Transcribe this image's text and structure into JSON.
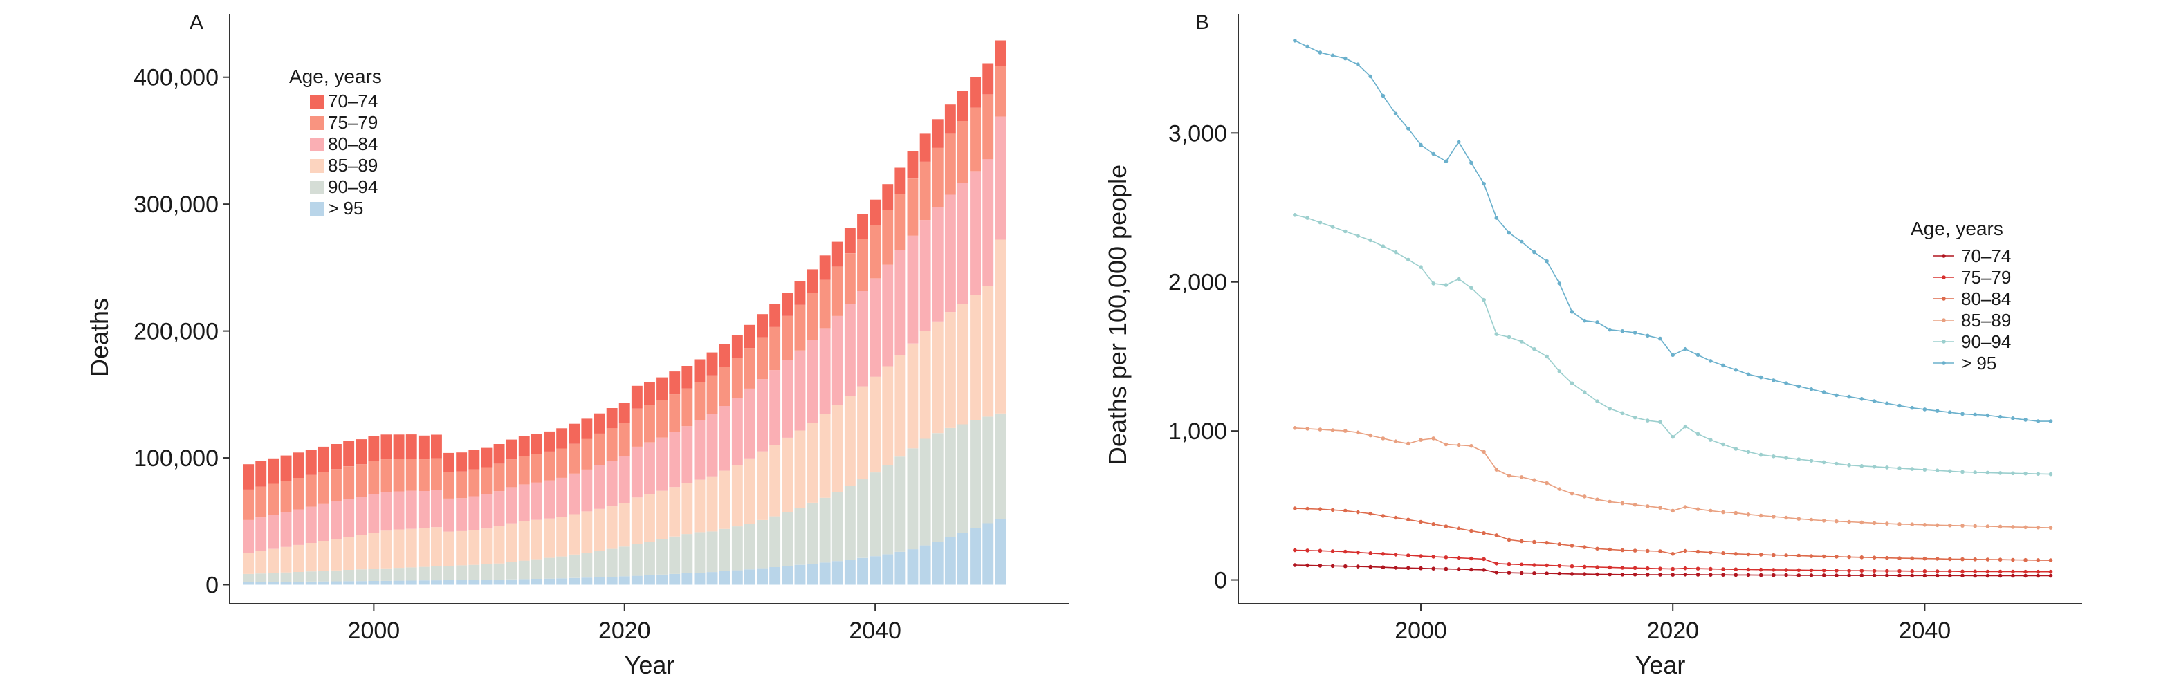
{
  "chart_data": [
    {
      "panel": "A",
      "type": "bar",
      "stacked": true,
      "xlabel": "Year",
      "ylabel": "Deaths",
      "x_ticks": [
        2000,
        2020,
        2040
      ],
      "y_ticks": [
        0,
        100000,
        200000,
        300000,
        400000
      ],
      "y_tick_labels": [
        "0",
        "100,000",
        "200,000",
        "300,000",
        "400,000"
      ],
      "xlim": [
        1988.5,
        2055.5
      ],
      "ylim": [
        -15000,
        450000
      ],
      "legend": {
        "title": "Age, years",
        "position": "top-left"
      },
      "categories": [
        1990,
        1991,
        1992,
        1993,
        1994,
        1995,
        1996,
        1997,
        1998,
        1999,
        2000,
        2001,
        2002,
        2003,
        2004,
        2005,
        2006,
        2007,
        2008,
        2009,
        2010,
        2011,
        2012,
        2013,
        2014,
        2015,
        2016,
        2017,
        2018,
        2019,
        2020,
        2021,
        2022,
        2023,
        2024,
        2025,
        2026,
        2027,
        2028,
        2029,
        2030,
        2031,
        2032,
        2033,
        2034,
        2035,
        2036,
        2037,
        2038,
        2039,
        2040,
        2041,
        2042,
        2043,
        2044,
        2045,
        2046,
        2047,
        2048,
        2049,
        2050
      ],
      "series": [
        {
          "name": "> 95",
          "color": "#b9d5e9",
          "values": [
            2000,
            2100,
            2200,
            2300,
            2400,
            2500,
            2600,
            2700,
            2800,
            2900,
            3000,
            3100,
            3200,
            3300,
            3400,
            3500,
            3600,
            3700,
            3800,
            3900,
            4000,
            4200,
            4400,
            4600,
            4800,
            5000,
            5300,
            5600,
            5900,
            6200,
            6600,
            7000,
            7500,
            8000,
            8500,
            9000,
            9500,
            10000,
            10700,
            11400,
            12100,
            13000,
            13900,
            14800,
            15700,
            16600,
            17500,
            18700,
            19900,
            21100,
            22500,
            24000,
            26000,
            28000,
            31000,
            34000,
            37500,
            41000,
            44500,
            48500,
            52000
          ]
        },
        {
          "name": "90–94",
          "color": "#d5ddd6",
          "values": [
            6500,
            6800,
            7100,
            7400,
            7700,
            8000,
            8300,
            8600,
            8900,
            9200,
            9500,
            9800,
            10100,
            10400,
            10700,
            11000,
            11300,
            11600,
            11900,
            12200,
            12800,
            13700,
            14600,
            15500,
            16400,
            17300,
            18500,
            19700,
            20900,
            22100,
            23500,
            25000,
            26500,
            28000,
            29500,
            31000,
            32000,
            32000,
            33300,
            34600,
            35900,
            38000,
            40000,
            42500,
            45000,
            48000,
            51000,
            54500,
            58000,
            62000,
            66000,
            70500,
            75000,
            79500,
            84000,
            85500,
            86000,
            85500,
            85000,
            84000,
            83000
          ]
        },
        {
          "name": "85–89",
          "color": "#fcd4bf",
          "values": [
            16500,
            17700,
            18900,
            20100,
            21300,
            22500,
            23700,
            24900,
            26100,
            27300,
            28500,
            29700,
            30300,
            30300,
            30300,
            30900,
            27000,
            27000,
            27600,
            28200,
            29500,
            30500,
            31000,
            31000,
            31000,
            31000,
            31800,
            32500,
            33000,
            33500,
            34000,
            36800,
            37200,
            38000,
            39000,
            40000,
            41300,
            43500,
            45900,
            48200,
            51600,
            54100,
            56300,
            58600,
            60900,
            63200,
            66300,
            68600,
            70900,
            73300,
            75500,
            77800,
            80200,
            82600,
            85000,
            88000,
            91500,
            95000,
            99000,
            103000,
            137000
          ]
        },
        {
          "name": "80–84",
          "color": "#faafb4",
          "values": [
            26000,
            26500,
            27000,
            27500,
            28000,
            28500,
            29000,
            29500,
            30000,
            30000,
            30500,
            30500,
            30000,
            30000,
            29500,
            29500,
            26000,
            26000,
            26500,
            27000,
            27500,
            28500,
            29000,
            29500,
            30000,
            31000,
            32000,
            33000,
            34500,
            36000,
            37000,
            40000,
            41000,
            42000,
            43500,
            45000,
            47000,
            49000,
            51000,
            53000,
            55000,
            57000,
            59000,
            61000,
            63000,
            65000,
            67500,
            70000,
            72500,
            75000,
            77500,
            80000,
            82500,
            85000,
            87500,
            90000,
            92500,
            95000,
            97500,
            100000,
            97000
          ]
        },
        {
          "name": "75–79",
          "color": "#f99480",
          "values": [
            24000,
            24200,
            24400,
            24600,
            24800,
            25000,
            25200,
            25400,
            25600,
            25600,
            25800,
            25800,
            25600,
            25400,
            25000,
            24800,
            21000,
            21000,
            21200,
            21400,
            21600,
            21900,
            22200,
            22500,
            22800,
            23100,
            23500,
            24200,
            24900,
            25600,
            26300,
            30000,
            29500,
            29500,
            29600,
            29700,
            30000,
            30500,
            31000,
            31500,
            32000,
            33000,
            34000,
            35000,
            36000,
            37000,
            38000,
            39000,
            40000,
            41000,
            42000,
            43000,
            44000,
            45000,
            46000,
            47000,
            48000,
            49000,
            50000,
            51000,
            40000
          ]
        },
        {
          "name": "70–74",
          "color": "#f3675a",
          "values": [
            20000,
            20000,
            20000,
            20000,
            20000,
            20000,
            20000,
            19800,
            19700,
            19700,
            19600,
            19500,
            19200,
            19100,
            18700,
            18600,
            15000,
            15000,
            15100,
            15200,
            15500,
            15600,
            15700,
            15800,
            15800,
            15900,
            15800,
            15900,
            15900,
            15900,
            15800,
            18000,
            18000,
            18000,
            18000,
            17800,
            17900,
            18100,
            18000,
            18000,
            18200,
            18200,
            18300,
            18400,
            18600,
            18800,
            19300,
            19500,
            19700,
            19900,
            20000,
            20500,
            21000,
            21500,
            22000,
            22500,
            23000,
            23500,
            24000,
            24500,
            20000
          ]
        }
      ]
    },
    {
      "panel": "B",
      "type": "line",
      "xlabel": "Year",
      "ylabel": "Deaths per 100,000 people",
      "x_ticks": [
        2000,
        2020,
        2040
      ],
      "y_ticks": [
        0,
        1000,
        2000,
        3000
      ],
      "y_tick_labels": [
        "0",
        "1,000",
        "2,000",
        "3,000"
      ],
      "xlim": [
        1985.5,
        2052.5
      ],
      "ylim": [
        -160,
        3800
      ],
      "legend": {
        "title": "Age, years",
        "position": "right"
      },
      "x": [
        1990,
        1991,
        1992,
        1993,
        1994,
        1995,
        1996,
        1997,
        1998,
        1999,
        2000,
        2001,
        2002,
        2003,
        2004,
        2005,
        2006,
        2007,
        2008,
        2009,
        2010,
        2011,
        2012,
        2013,
        2014,
        2015,
        2016,
        2017,
        2018,
        2019,
        2020,
        2021,
        2022,
        2023,
        2024,
        2025,
        2026,
        2027,
        2028,
        2029,
        2030,
        2031,
        2032,
        2033,
        2034,
        2035,
        2036,
        2037,
        2038,
        2039,
        2040,
        2041,
        2042,
        2043,
        2044,
        2045,
        2046,
        2047,
        2048,
        2049,
        2050
      ],
      "series": [
        {
          "name": "70–74",
          "color": "#b0151f",
          "values": [
            100,
            98,
            96,
            94,
            92,
            90,
            88,
            85,
            82,
            80,
            78,
            76,
            74,
            72,
            70,
            68,
            50,
            48,
            46,
            45,
            44,
            42,
            40,
            39,
            38,
            37,
            36,
            36,
            35,
            35,
            34,
            36,
            35,
            34,
            34,
            33,
            33,
            32,
            32,
            32,
            31,
            31,
            31,
            30,
            30,
            30,
            30,
            30,
            29,
            29,
            29,
            29,
            29,
            29,
            28,
            28,
            28,
            28,
            28,
            28,
            28
          ]
        },
        {
          "name": "75–79",
          "color": "#d7302e",
          "values": [
            200,
            198,
            196,
            193,
            190,
            185,
            180,
            175,
            170,
            165,
            160,
            156,
            152,
            148,
            144,
            140,
            110,
            106,
            103,
            100,
            98,
            95,
            92,
            89,
            86,
            84,
            82,
            80,
            78,
            76,
            74,
            78,
            76,
            74,
            72,
            71,
            70,
            69,
            68,
            67,
            66,
            65,
            64,
            63,
            62,
            62,
            61,
            60,
            60,
            59,
            59,
            58,
            58,
            57,
            57,
            56,
            56,
            56,
            55,
            55,
            55
          ]
        },
        {
          "name": "80–84",
          "color": "#dd6a4b",
          "values": [
            480,
            478,
            475,
            470,
            465,
            455,
            445,
            430,
            418,
            405,
            390,
            375,
            360,
            345,
            330,
            315,
            300,
            270,
            260,
            255,
            250,
            240,
            230,
            220,
            210,
            205,
            200,
            197,
            195,
            193,
            175,
            195,
            190,
            185,
            180,
            175,
            172,
            170,
            167,
            165,
            163,
            160,
            158,
            156,
            154,
            152,
            150,
            148,
            146,
            145,
            143,
            142,
            140,
            139,
            138,
            137,
            136,
            135,
            134,
            133,
            132
          ]
        },
        {
          "name": "85–89",
          "color": "#e9a080",
          "values": [
            1020,
            1015,
            1010,
            1005,
            1000,
            990,
            970,
            950,
            930,
            915,
            940,
            950,
            910,
            905,
            900,
            860,
            740,
            700,
            690,
            670,
            650,
            610,
            580,
            560,
            540,
            525,
            515,
            505,
            495,
            485,
            465,
            490,
            475,
            465,
            455,
            450,
            440,
            432,
            425,
            418,
            410,
            404,
            398,
            394,
            390,
            386,
            382,
            378,
            375,
            373,
            370,
            368,
            366,
            364,
            362,
            360,
            358,
            356,
            354,
            352,
            350
          ]
        },
        {
          "name": "90–94",
          "color": "#9ccfce",
          "values": [
            2450,
            2430,
            2400,
            2370,
            2340,
            2310,
            2280,
            2240,
            2200,
            2150,
            2100,
            1990,
            1980,
            2020,
            1960,
            1880,
            1650,
            1630,
            1600,
            1550,
            1500,
            1400,
            1320,
            1260,
            1200,
            1150,
            1120,
            1090,
            1070,
            1060,
            960,
            1030,
            980,
            940,
            910,
            880,
            860,
            840,
            830,
            820,
            810,
            800,
            790,
            780,
            770,
            765,
            760,
            755,
            750,
            745,
            740,
            735,
            730,
            725,
            722,
            720,
            718,
            716,
            714,
            712,
            710
          ]
        },
        {
          "name": "> 95",
          "color": "#6ab0cc",
          "values": [
            3620,
            3580,
            3540,
            3520,
            3500,
            3460,
            3380,
            3250,
            3130,
            3030,
            2920,
            2860,
            2810,
            2940,
            2800,
            2660,
            2430,
            2330,
            2270,
            2200,
            2140,
            1990,
            1800,
            1740,
            1730,
            1680,
            1670,
            1660,
            1640,
            1620,
            1510,
            1550,
            1510,
            1470,
            1440,
            1410,
            1380,
            1360,
            1340,
            1320,
            1300,
            1280,
            1260,
            1240,
            1230,
            1215,
            1200,
            1185,
            1170,
            1155,
            1145,
            1135,
            1125,
            1115,
            1110,
            1105,
            1095,
            1085,
            1075,
            1065,
            1065
          ]
        }
      ]
    }
  ],
  "labels": {
    "panel_a": "A",
    "panel_b": "B"
  }
}
